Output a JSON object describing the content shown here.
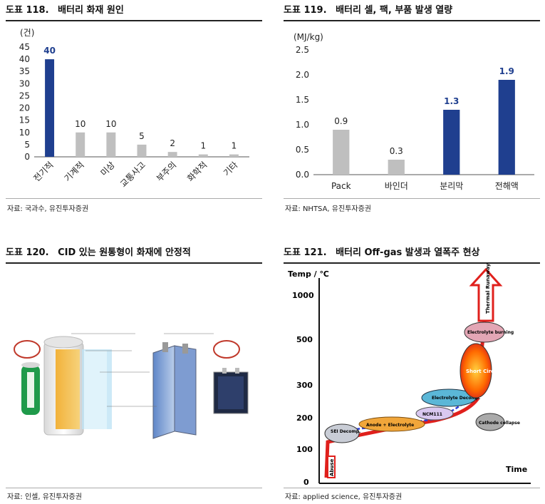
{
  "charts": [
    {
      "figure_number": "도표 118.",
      "title": "배터리 화재 원인",
      "unit": "(건)",
      "source": "자료: 국과수, 유진투자증권"
    },
    {
      "figure_number": "도표 119.",
      "title": "배터리 셀, 팩, 부품 발생 열량",
      "unit": "(MJ/kg)",
      "source": "자료: NHTSA, 유진투자증권"
    },
    {
      "figure_number": "도표 120.",
      "title": "CID 있는 원통형이 화재에 안정적",
      "source": "자료: 인셀, 유진투자증권"
    },
    {
      "figure_number": "도표 121.",
      "title": "배터리 Off-gas 발생과 열폭주 현상",
      "source": "자료: applied science, 유진투자증권",
      "y_axis_label": "Temp / ℃",
      "x_axis_label": "Time",
      "y_ticks": [
        "1000",
        "500",
        "300",
        "200",
        "100",
        "0"
      ],
      "stages": [
        "SEI Decomp.",
        "Anode + Electrolyte",
        "NCM111",
        "Electrolyte Decomp.",
        "Short Circuit",
        "Electrolyte burning",
        "Cathode collapse",
        "Thermal Runaway",
        "Abuse"
      ]
    }
  ],
  "chart_data": [
    {
      "type": "bar",
      "categories": [
        "전기적",
        "기계적",
        "미상",
        "교통사고",
        "부주의",
        "화학적",
        "기타"
      ],
      "values": [
        40,
        10,
        10,
        5,
        2,
        1,
        1
      ],
      "highlight": [
        "전기적"
      ],
      "ylim": [
        0,
        45
      ],
      "yticks": [
        0,
        5,
        10,
        15,
        20,
        25,
        30,
        35,
        40,
        45
      ],
      "colors": {
        "highlight": "#1f3f8f",
        "normal": "#bfbfbf"
      }
    },
    {
      "type": "bar",
      "categories": [
        "Pack",
        "바인더",
        "분리막",
        "전해액"
      ],
      "values": [
        0.9,
        0.3,
        1.3,
        1.9
      ],
      "highlight": [
        "분리막",
        "전해액"
      ],
      "ylim": [
        0,
        2.5
      ],
      "yticks": [
        0.0,
        0.5,
        1.0,
        1.5,
        2.0,
        2.5
      ],
      "colors": {
        "highlight": "#1f3f8f",
        "normal": "#bfbfbf"
      }
    }
  ]
}
